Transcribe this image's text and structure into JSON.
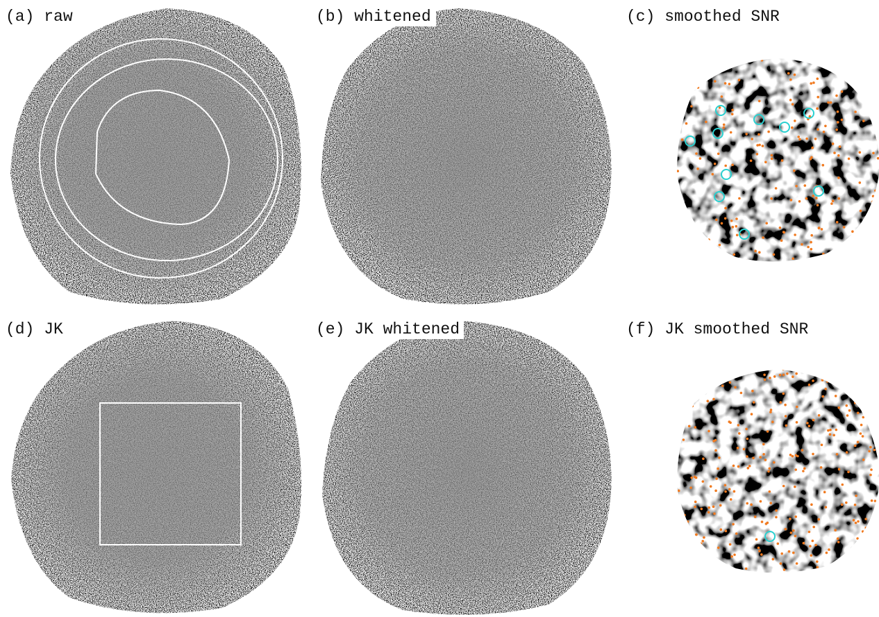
{
  "panels": [
    {
      "label": "(a) raw"
    },
    {
      "label": "(b) whitened"
    },
    {
      "label": "(c) smoothed SNR"
    },
    {
      "label": "(d) JK"
    },
    {
      "label": "(e) JK whitened"
    },
    {
      "label": "(f) JK smoothed SNR"
    }
  ]
}
